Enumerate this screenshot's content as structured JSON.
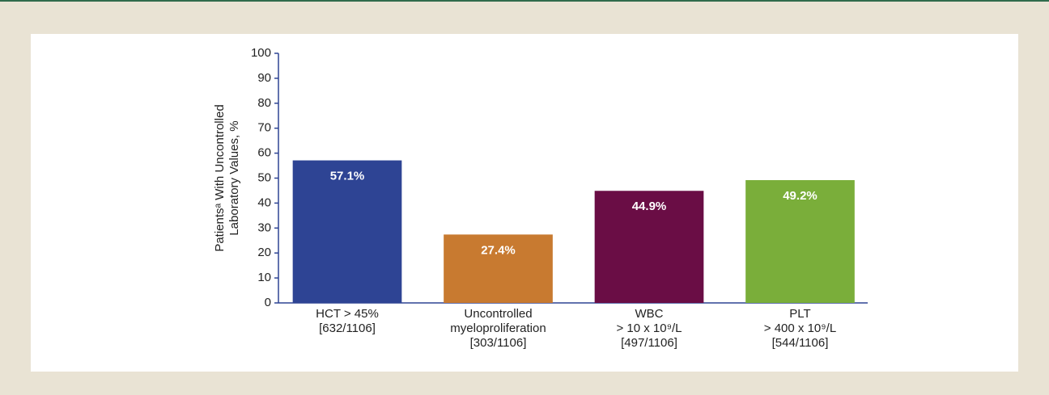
{
  "chart_data": {
    "type": "bar",
    "y_label": [
      "Patientsᵃ With Uncontrolled",
      "Laboratory Values, %"
    ],
    "categories": [
      [
        "HCT > 45%",
        "[632/1106]"
      ],
      [
        "Uncontrolled",
        "myeloproliferation",
        "[303/1106]"
      ],
      [
        "WBC",
        "> 10 x 10⁹/L",
        "[497/1106]"
      ],
      [
        "PLT",
        "> 400 x 10⁹/L",
        "[544/1106]"
      ]
    ],
    "values": [
      57.1,
      27.4,
      44.9,
      49.2
    ],
    "value_labels": [
      "57.1%",
      "27.4%",
      "44.9%",
      "49.2%"
    ],
    "colors": [
      "#2e4494",
      "#c87a30",
      "#6a0d45",
      "#7aae3a"
    ],
    "ylim": [
      0,
      100
    ],
    "yticks": [
      0,
      10,
      20,
      30,
      40,
      50,
      60,
      70,
      80,
      90,
      100
    ],
    "grid": false
  }
}
